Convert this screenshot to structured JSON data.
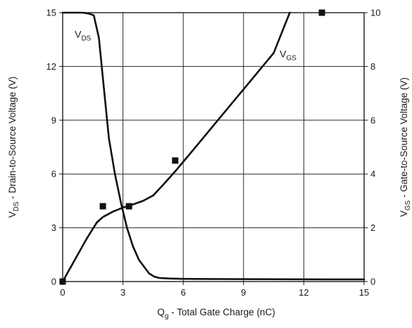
{
  "chart_data": {
    "type": "line",
    "title": "",
    "xlabel": {
      "main": "Q",
      "sub": "g",
      "rest": " - Total Gate Charge (nC)"
    },
    "ylabel_left": {
      "main": "V",
      "sub": "DS",
      "rest": " - Drain-to-Source Voltage (V)"
    },
    "ylabel_right": {
      "main": "V",
      "sub": "GS",
      "rest": " - Gate-to-Source Voltage (V)"
    },
    "xlim": [
      0,
      15
    ],
    "ylim_left": [
      0,
      15
    ],
    "ylim_right": [
      0,
      10
    ],
    "x_ticks": [
      0,
      3,
      6,
      9,
      12,
      15
    ],
    "y_left_ticks": [
      0,
      3,
      6,
      9,
      12,
      15
    ],
    "y_right_ticks": [
      0,
      2,
      4,
      6,
      8,
      10
    ],
    "grid": true,
    "series": [
      {
        "name": {
          "main": "V",
          "sub": "DS"
        },
        "axis": "left",
        "label_at": [
          0.6,
          13.6
        ],
        "x": [
          0,
          1.0,
          1.3,
          1.55,
          1.8,
          2.05,
          2.3,
          2.6,
          2.9,
          3.2,
          3.5,
          3.8,
          4.1,
          4.3,
          4.55,
          4.8,
          5.3,
          6.0,
          7.5,
          10.0,
          13.0,
          15.0
        ],
        "values": [
          15.0,
          15.0,
          14.95,
          14.85,
          13.6,
          10.8,
          8.0,
          6.0,
          4.4,
          3.0,
          1.95,
          1.2,
          0.75,
          0.45,
          0.28,
          0.2,
          0.17,
          0.15,
          0.14,
          0.13,
          0.12,
          0.12
        ]
      },
      {
        "name": {
          "main": "V",
          "sub": "GS"
        },
        "axis": "right",
        "label_at": [
          10.8,
          12.5
        ],
        "x": [
          0,
          0.6,
          1.2,
          1.7,
          2.0,
          2.5,
          3.0,
          3.5,
          4.0,
          4.5,
          5.0,
          5.6,
          6.5,
          7.5,
          8.5,
          9.5,
          10.5,
          11.3
        ],
        "values": [
          0,
          0.8,
          1.6,
          2.2,
          2.4,
          2.6,
          2.75,
          2.87,
          3.0,
          3.2,
          3.6,
          4.1,
          4.9,
          5.8,
          6.7,
          7.6,
          8.5,
          10.0
        ]
      }
    ],
    "markers": [
      {
        "x": 0,
        "y": 0,
        "axis": "left"
      },
      {
        "x": 2.0,
        "y": 4.2,
        "axis": "left"
      },
      {
        "x": 3.3,
        "y": 4.2,
        "axis": "left"
      },
      {
        "x": 5.6,
        "y": 6.75,
        "axis": "left"
      },
      {
        "x": 12.9,
        "y": 15.0,
        "axis": "left"
      }
    ]
  }
}
